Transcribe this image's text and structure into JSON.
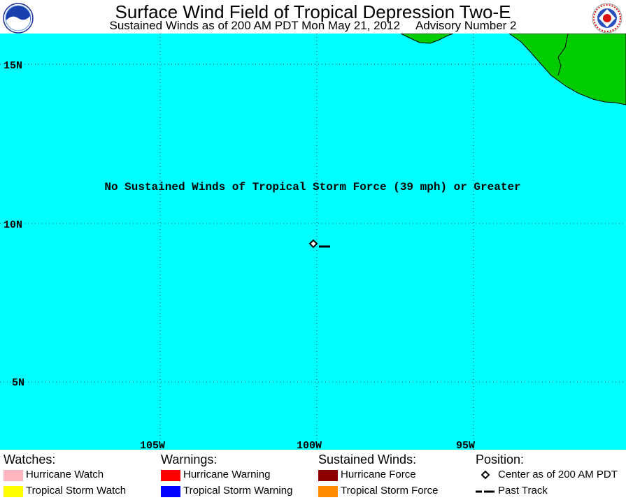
{
  "header": {
    "title": "Surface Wind Field of Tropical Depression Two-E",
    "subtitle_left": "Sustained Winds as of 200 AM PDT Mon May 21, 2012",
    "subtitle_right": "Advisory Number 2",
    "logo_left_text": "NOAA",
    "logo_right_text": "NATIONAL WEATHER SERVICE"
  },
  "map": {
    "ocean_color": "#00ffff",
    "land_color": "#00cc00",
    "message": "No Sustained Winds of Tropical Storm Force (39 mph) or Greater",
    "lat_labels": [
      "15N",
      "10N",
      "5N"
    ],
    "lon_labels": [
      "105W",
      "100W",
      "95W"
    ],
    "storm_center": {
      "lon": -100.0,
      "lat": 9.5
    },
    "past_track": [
      {
        "lon": -99.5,
        "lat": 9.4
      },
      {
        "lon": -99.3,
        "lat": 9.4
      }
    ]
  },
  "legend": {
    "watches": {
      "heading": "Watches:",
      "items": [
        {
          "label": "Hurricane Watch",
          "color": "#ffb6c1"
        },
        {
          "label": "Tropical Storm Watch",
          "color": "#ffff00"
        }
      ]
    },
    "warnings": {
      "heading": "Warnings:",
      "items": [
        {
          "label": "Hurricane Warning",
          "color": "#ff0000"
        },
        {
          "label": "Tropical Storm Warning",
          "color": "#0000ff"
        }
      ]
    },
    "winds": {
      "heading": "Sustained Winds:",
      "items": [
        {
          "label": "Hurricane Force",
          "color": "#8b0000"
        },
        {
          "label": "Tropical Storm Force",
          "color": "#ff8c00"
        }
      ]
    },
    "position": {
      "heading": "Position:",
      "items": [
        {
          "label": "Center as of 200 AM PDT",
          "icon": "diamond-icon"
        },
        {
          "label": "Past Track",
          "icon": "dashed-line-icon"
        }
      ]
    }
  }
}
